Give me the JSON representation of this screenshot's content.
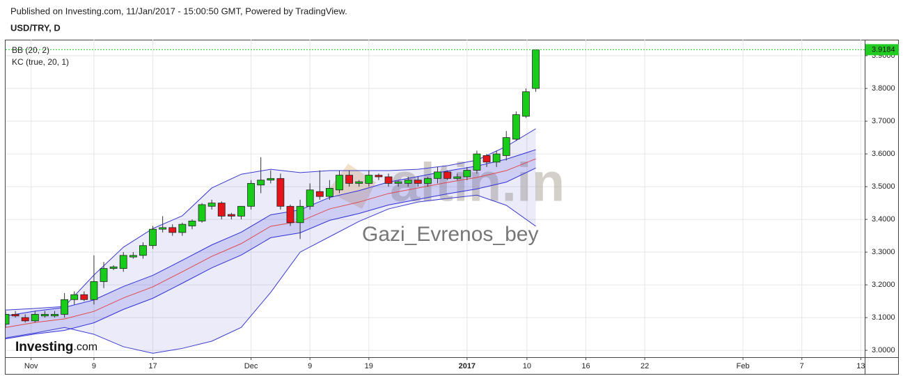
{
  "header": {
    "published": "Published on Investing.com, 11/Jan/2017 - 15:00:50 GMT, Powered by TradingView.",
    "symbol": "USD/TRY, D"
  },
  "chart_data": {
    "type": "candlestick",
    "x": [
      0,
      1,
      2,
      3,
      4,
      5,
      6,
      7,
      8,
      9,
      10,
      11,
      12,
      13,
      14,
      15,
      16,
      17,
      18,
      19,
      20,
      21,
      22,
      23,
      24,
      25,
      26,
      27,
      28,
      29,
      30,
      31,
      32,
      33,
      34,
      35,
      36,
      37,
      38,
      39,
      40,
      41,
      42,
      43,
      44,
      45,
      46,
      47,
      48,
      49,
      50,
      51,
      52,
      53,
      54
    ],
    "open": [
      3.08,
      3.11,
      3.1,
      3.09,
      3.105,
      3.105,
      3.11,
      3.155,
      3.17,
      3.155,
      3.21,
      3.25,
      3.25,
      3.285,
      3.29,
      3.32,
      3.37,
      3.375,
      3.36,
      3.38,
      3.395,
      3.44,
      3.45,
      3.415,
      3.41,
      3.44,
      3.505,
      3.52,
      3.525,
      3.44,
      3.39,
      3.44,
      3.485,
      3.47,
      3.49,
      3.535,
      3.51,
      3.51,
      3.535,
      3.53,
      3.51,
      3.51,
      3.52,
      3.51,
      3.525,
      3.545,
      3.525,
      3.53,
      3.55,
      3.595,
      3.575,
      3.595,
      3.645,
      3.715,
      3.8
    ],
    "high": [
      3.12,
      3.12,
      3.11,
      3.12,
      3.12,
      3.12,
      3.175,
      3.18,
      3.18,
      3.29,
      3.27,
      3.26,
      3.3,
      3.3,
      3.33,
      3.38,
      3.41,
      3.385,
      3.39,
      3.4,
      3.45,
      3.46,
      3.455,
      3.42,
      3.44,
      3.52,
      3.59,
      3.55,
      3.54,
      3.445,
      3.46,
      3.51,
      3.55,
      3.52,
      3.55,
      3.55,
      3.52,
      3.55,
      3.54,
      3.54,
      3.52,
      3.53,
      3.53,
      3.53,
      3.56,
      3.55,
      3.54,
      3.56,
      3.61,
      3.6,
      3.61,
      3.67,
      3.73,
      3.8,
      3.9184
    ],
    "low": [
      3.07,
      3.1,
      3.085,
      3.085,
      3.1,
      3.1,
      3.1,
      3.14,
      3.15,
      3.14,
      3.19,
      3.245,
      3.24,
      3.28,
      3.28,
      3.31,
      3.36,
      3.35,
      3.35,
      3.37,
      3.39,
      3.43,
      3.4,
      3.4,
      3.4,
      3.43,
      3.48,
      3.51,
      3.43,
      3.38,
      3.34,
      3.43,
      3.46,
      3.46,
      3.48,
      3.5,
      3.5,
      3.5,
      3.52,
      3.5,
      3.5,
      3.5,
      3.5,
      3.5,
      3.51,
      3.52,
      3.52,
      3.52,
      3.54,
      3.56,
      3.56,
      3.58,
      3.64,
      3.71,
      3.79
    ],
    "close": [
      3.11,
      3.105,
      3.09,
      3.11,
      3.11,
      3.11,
      3.155,
      3.17,
      3.155,
      3.21,
      3.25,
      3.255,
      3.29,
      3.29,
      3.32,
      3.37,
      3.375,
      3.36,
      3.385,
      3.395,
      3.445,
      3.45,
      3.41,
      3.41,
      3.44,
      3.51,
      3.52,
      3.525,
      3.44,
      3.39,
      3.44,
      3.49,
      3.47,
      3.495,
      3.535,
      3.51,
      3.515,
      3.535,
      3.53,
      3.51,
      3.515,
      3.52,
      3.51,
      3.525,
      3.545,
      3.525,
      3.53,
      3.55,
      3.6,
      3.575,
      3.6,
      3.65,
      3.72,
      3.79,
      3.918
    ],
    "up_color": "#19cc19",
    "down_color": "#e5141b",
    "band_x": [
      0,
      3,
      6,
      9,
      12,
      15,
      18,
      21,
      24,
      27,
      30,
      33,
      36,
      39,
      42,
      45,
      48,
      51,
      54
    ],
    "bands": [
      {
        "name": "BB (20, 2)",
        "color": "#3a3ad0",
        "fill": "rgba(110,110,210,0.14)",
        "upper": [
          3.123,
          3.128,
          3.134,
          3.23,
          3.315,
          3.372,
          3.411,
          3.496,
          3.538,
          3.553,
          3.543,
          3.549,
          3.549,
          3.549,
          3.553,
          3.564,
          3.581,
          3.623,
          3.677
        ],
        "lower": [
          3.038,
          3.053,
          3.07,
          3.049,
          3.011,
          2.991,
          3.006,
          3.028,
          3.07,
          3.177,
          3.3,
          3.347,
          3.394,
          3.432,
          3.453,
          3.464,
          3.474,
          3.443,
          3.379
        ]
      },
      {
        "name": "KC (true, 20, 1)",
        "color": "#2f2fd8",
        "fill": "rgba(80,80,220,0.18)",
        "middle_color": "#e0474c",
        "upper": [
          3.105,
          3.12,
          3.131,
          3.154,
          3.195,
          3.229,
          3.275,
          3.322,
          3.361,
          3.414,
          3.429,
          3.467,
          3.488,
          3.514,
          3.531,
          3.548,
          3.563,
          3.584,
          3.613
        ],
        "middle": [
          3.07,
          3.085,
          3.096,
          3.119,
          3.16,
          3.194,
          3.24,
          3.287,
          3.326,
          3.379,
          3.394,
          3.432,
          3.453,
          3.479,
          3.496,
          3.513,
          3.528,
          3.549,
          3.585
        ],
        "lower": [
          3.035,
          3.05,
          3.061,
          3.084,
          3.125,
          3.159,
          3.205,
          3.252,
          3.291,
          3.344,
          3.359,
          3.397,
          3.418,
          3.444,
          3.461,
          3.478,
          3.493,
          3.514,
          3.557
        ]
      }
    ],
    "last_price": 3.9184,
    "last_price_color": "#22cc22",
    "xlim": [
      0,
      87.5
    ],
    "ylim": [
      2.979,
      3.949
    ],
    "xticks": [
      {
        "value": 2.6,
        "label": "Nov"
      },
      {
        "value": 9,
        "label": "9"
      },
      {
        "value": 15,
        "label": "17"
      },
      {
        "value": 25,
        "label": "Dec"
      },
      {
        "value": 31,
        "label": "9"
      },
      {
        "value": 37,
        "label": "19"
      },
      {
        "value": 47,
        "label": "2017"
      },
      {
        "value": 53.1,
        "label": "10"
      },
      {
        "value": 59.1,
        "label": "16"
      },
      {
        "value": 65.1,
        "label": "22"
      },
      {
        "value": 75.1,
        "label": "Feb"
      },
      {
        "value": 81.1,
        "label": "7"
      },
      {
        "value": 87.1,
        "label": "13"
      }
    ],
    "yticks": [
      {
        "value": 3.0,
        "label": "3.0000"
      },
      {
        "value": 3.1,
        "label": "3.1000"
      },
      {
        "value": 3.2,
        "label": "3.2000"
      },
      {
        "value": 3.3,
        "label": "3.3000"
      },
      {
        "value": 3.4,
        "label": "3.4000"
      },
      {
        "value": 3.5,
        "label": "3.5000"
      },
      {
        "value": 3.6,
        "label": "3.6000"
      },
      {
        "value": 3.7,
        "label": "3.7000"
      },
      {
        "value": 3.8,
        "label": "3.8000"
      },
      {
        "value": 3.9,
        "label": "3.9000"
      }
    ],
    "grid": true
  },
  "watermark": {
    "site": "altin.in",
    "author": "Gazi_Evrenos_bey"
  },
  "logo": {
    "brand": "Investing",
    "suffix": ".com"
  }
}
